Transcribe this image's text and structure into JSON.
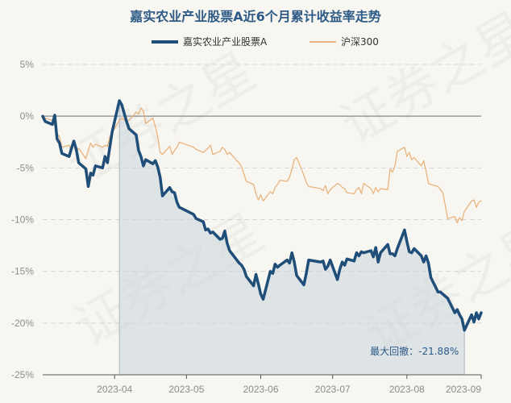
{
  "chart_data": {
    "type": "line",
    "title": "嘉实农业产业股票A近6个月累计收益率走势",
    "ylim": [
      -25,
      5
    ],
    "yticks": [
      "5%",
      "0%",
      "-5%",
      "-10%",
      "-15%",
      "-20%",
      "-25%"
    ],
    "ytick_values": [
      5,
      0,
      -5,
      -10,
      -15,
      -20,
      -25
    ],
    "xticks": [
      "2023-04",
      "2023-05",
      "2023-06",
      "2023-07",
      "2023-08",
      "2023-09"
    ],
    "xtick_values": [
      "2023-04-01",
      "2023-05-01",
      "2023-06-01",
      "2023-07-01",
      "2023-08-01",
      "2023-09-01"
    ],
    "x_range": [
      "2023-03-02",
      "2023-09-01"
    ],
    "legend_position": "top",
    "grid": "horizontal",
    "series": [
      {
        "name": "嘉实农业产业股票A",
        "color": "#1f4e79",
        "points": [
          [
            "2023-03-02",
            0.0
          ],
          [
            "2023-03-03",
            -0.5
          ],
          [
            "2023-03-06",
            -0.8
          ],
          [
            "2023-03-07",
            0.1
          ],
          [
            "2023-03-08",
            -2.2
          ],
          [
            "2023-03-09",
            -2.6
          ],
          [
            "2023-03-10",
            -3.6
          ],
          [
            "2023-03-13",
            -3.9
          ],
          [
            "2023-03-14",
            -3.1
          ],
          [
            "2023-03-15",
            -2.4
          ],
          [
            "2023-03-16",
            -3.2
          ],
          [
            "2023-03-17",
            -4.5
          ],
          [
            "2023-03-20",
            -5.1
          ],
          [
            "2023-03-21",
            -6.8
          ],
          [
            "2023-03-22",
            -5.5
          ],
          [
            "2023-03-23",
            -5.7
          ],
          [
            "2023-03-24",
            -4.8
          ],
          [
            "2023-03-27",
            -5.0
          ],
          [
            "2023-03-28",
            -3.9
          ],
          [
            "2023-03-29",
            -4.5
          ],
          [
            "2023-03-30",
            -3.0
          ],
          [
            "2023-03-31",
            -1.5
          ],
          [
            "2023-04-03",
            1.5
          ],
          [
            "2023-04-04",
            1.1
          ],
          [
            "2023-04-06",
            -0.5
          ],
          [
            "2023-04-07",
            -1.2
          ],
          [
            "2023-04-10",
            -1.8
          ],
          [
            "2023-04-11",
            -3.3
          ],
          [
            "2023-04-12",
            -3.9
          ],
          [
            "2023-04-13",
            -4.8
          ],
          [
            "2023-04-14",
            -4.2
          ],
          [
            "2023-04-17",
            -4.6
          ],
          [
            "2023-04-18",
            -4.3
          ],
          [
            "2023-04-19",
            -4.9
          ],
          [
            "2023-04-20",
            -5.9
          ],
          [
            "2023-04-21",
            -7.7
          ],
          [
            "2023-04-24",
            -6.9
          ],
          [
            "2023-04-25",
            -7.3
          ],
          [
            "2023-04-26",
            -7.4
          ],
          [
            "2023-04-27",
            -8.3
          ],
          [
            "2023-04-28",
            -8.8
          ],
          [
            "2023-05-04",
            -9.5
          ],
          [
            "2023-05-05",
            -9.9
          ],
          [
            "2023-05-08",
            -10.2
          ],
          [
            "2023-05-09",
            -11.0
          ],
          [
            "2023-05-10",
            -10.9
          ],
          [
            "2023-05-11",
            -11.3
          ],
          [
            "2023-05-12",
            -11.2
          ],
          [
            "2023-05-15",
            -11.9
          ],
          [
            "2023-05-16",
            -11.8
          ],
          [
            "2023-05-17",
            -11.1
          ],
          [
            "2023-05-18",
            -12.3
          ],
          [
            "2023-05-19",
            -13.0
          ],
          [
            "2023-05-22",
            -13.9
          ],
          [
            "2023-05-23",
            -14.2
          ],
          [
            "2023-05-24",
            -14.4
          ],
          [
            "2023-05-25",
            -14.8
          ],
          [
            "2023-05-26",
            -15.5
          ],
          [
            "2023-05-29",
            -16.4
          ],
          [
            "2023-05-30",
            -15.3
          ],
          [
            "2023-05-31",
            -16.2
          ],
          [
            "2023-06-01",
            -17.2
          ],
          [
            "2023-06-02",
            -17.7
          ],
          [
            "2023-06-05",
            -15.0
          ],
          [
            "2023-06-06",
            -15.2
          ],
          [
            "2023-06-07",
            -14.3
          ],
          [
            "2023-06-08",
            -14.6
          ],
          [
            "2023-06-09",
            -14.4
          ],
          [
            "2023-06-12",
            -13.9
          ],
          [
            "2023-06-13",
            -14.2
          ],
          [
            "2023-06-14",
            -13.2
          ],
          [
            "2023-06-15",
            -14.1
          ],
          [
            "2023-06-16",
            -15.4
          ],
          [
            "2023-06-19",
            -16.3
          ],
          [
            "2023-06-20",
            -15.2
          ],
          [
            "2023-06-21",
            -13.9
          ],
          [
            "2023-06-26",
            -14.1
          ],
          [
            "2023-06-27",
            -14.0
          ],
          [
            "2023-06-28",
            -14.8
          ],
          [
            "2023-06-29",
            -14.5
          ],
          [
            "2023-06-30",
            -13.9
          ],
          [
            "2023-07-03",
            -15.8
          ],
          [
            "2023-07-04",
            -14.8
          ],
          [
            "2023-07-05",
            -14.1
          ],
          [
            "2023-07-06",
            -14.4
          ],
          [
            "2023-07-07",
            -13.8
          ],
          [
            "2023-07-10",
            -14.0
          ],
          [
            "2023-07-11",
            -13.2
          ],
          [
            "2023-07-12",
            -13.5
          ],
          [
            "2023-07-13",
            -13.1
          ],
          [
            "2023-07-14",
            -13.2
          ],
          [
            "2023-07-17",
            -13.0
          ],
          [
            "2023-07-18",
            -13.6
          ],
          [
            "2023-07-19",
            -12.7
          ],
          [
            "2023-07-20",
            -14.1
          ],
          [
            "2023-07-21",
            -13.2
          ],
          [
            "2023-07-24",
            -12.4
          ],
          [
            "2023-07-25",
            -13.3
          ],
          [
            "2023-07-26",
            -13.3
          ],
          [
            "2023-07-27",
            -13.5
          ],
          [
            "2023-07-28",
            -12.8
          ],
          [
            "2023-07-31",
            -11.0
          ],
          [
            "2023-08-01",
            -12.1
          ],
          [
            "2023-08-02",
            -13.1
          ],
          [
            "2023-08-03",
            -13.2
          ],
          [
            "2023-08-04",
            -12.8
          ],
          [
            "2023-08-07",
            -13.5
          ],
          [
            "2023-08-08",
            -14.1
          ],
          [
            "2023-08-09",
            -13.5
          ],
          [
            "2023-08-10",
            -14.2
          ],
          [
            "2023-08-11",
            -15.6
          ],
          [
            "2023-08-14",
            -17.0
          ],
          [
            "2023-08-15",
            -17.0
          ],
          [
            "2023-08-16",
            -17.2
          ],
          [
            "2023-08-17",
            -17.4
          ],
          [
            "2023-08-18",
            -17.6
          ],
          [
            "2023-08-21",
            -19.0
          ],
          [
            "2023-08-22",
            -18.7
          ],
          [
            "2023-08-23",
            -19.2
          ],
          [
            "2023-08-24",
            -19.6
          ],
          [
            "2023-08-25",
            -20.7
          ],
          [
            "2023-08-28",
            -19.2
          ],
          [
            "2023-08-29",
            -19.9
          ],
          [
            "2023-08-30",
            -19.0
          ],
          [
            "2023-08-31",
            -19.6
          ],
          [
            "2023-09-01",
            -19.0
          ]
        ]
      },
      {
        "name": "沪深300",
        "color": "#e8b47e",
        "points": [
          [
            "2023-03-02",
            0.0
          ],
          [
            "2023-03-03",
            -0.2
          ],
          [
            "2023-03-06",
            -0.4
          ],
          [
            "2023-03-07",
            -0.9
          ],
          [
            "2023-03-08",
            -1.7
          ],
          [
            "2023-03-09",
            -2.0
          ],
          [
            "2023-03-10",
            -3.0
          ],
          [
            "2023-03-13",
            -2.8
          ],
          [
            "2023-03-14",
            -3.3
          ],
          [
            "2023-03-15",
            -2.5
          ],
          [
            "2023-03-16",
            -3.5
          ],
          [
            "2023-03-17",
            -3.1
          ],
          [
            "2023-03-20",
            -4.1
          ],
          [
            "2023-03-21",
            -3.3
          ],
          [
            "2023-03-22",
            -2.6
          ],
          [
            "2023-03-23",
            -3.0
          ],
          [
            "2023-03-24",
            -2.7
          ],
          [
            "2023-03-27",
            -3.0
          ],
          [
            "2023-03-28",
            -2.8
          ],
          [
            "2023-03-29",
            -2.9
          ],
          [
            "2023-03-30",
            -2.0
          ],
          [
            "2023-03-31",
            -1.6
          ],
          [
            "2023-04-03",
            -0.4
          ],
          [
            "2023-04-04",
            -0.2
          ],
          [
            "2023-04-06",
            -0.5
          ],
          [
            "2023-04-07",
            -0.4
          ],
          [
            "2023-04-10",
            0.4
          ],
          [
            "2023-04-11",
            0.2
          ],
          [
            "2023-04-12",
            0.8
          ],
          [
            "2023-04-13",
            0.5
          ],
          [
            "2023-04-14",
            -0.7
          ],
          [
            "2023-04-17",
            -0.2
          ],
          [
            "2023-04-18",
            -1.0
          ],
          [
            "2023-04-19",
            -2.0
          ],
          [
            "2023-04-20",
            -3.5
          ],
          [
            "2023-04-21",
            -3.7
          ],
          [
            "2023-04-24",
            -2.9
          ],
          [
            "2023-04-25",
            -3.7
          ],
          [
            "2023-04-26",
            -3.3
          ],
          [
            "2023-04-27",
            -3.0
          ],
          [
            "2023-04-28",
            -2.5
          ],
          [
            "2023-05-04",
            -3.0
          ],
          [
            "2023-05-05",
            -3.2
          ],
          [
            "2023-05-08",
            -3.5
          ],
          [
            "2023-05-09",
            -3.3
          ],
          [
            "2023-05-10",
            -3.1
          ],
          [
            "2023-05-11",
            -2.8
          ],
          [
            "2023-05-12",
            -3.7
          ],
          [
            "2023-05-15",
            -3.4
          ],
          [
            "2023-05-16",
            -3.0
          ],
          [
            "2023-05-17",
            -3.2
          ],
          [
            "2023-05-18",
            -3.7
          ],
          [
            "2023-05-19",
            -3.5
          ],
          [
            "2023-05-22",
            -4.3
          ],
          [
            "2023-05-23",
            -4.5
          ],
          [
            "2023-05-24",
            -4.9
          ],
          [
            "2023-05-25",
            -5.6
          ],
          [
            "2023-05-26",
            -6.3
          ],
          [
            "2023-05-29",
            -6.6
          ],
          [
            "2023-05-30",
            -7.5
          ],
          [
            "2023-05-31",
            -8.1
          ],
          [
            "2023-06-01",
            -7.6
          ],
          [
            "2023-06-02",
            -8.2
          ],
          [
            "2023-06-05",
            -7.3
          ],
          [
            "2023-06-06",
            -7.5
          ],
          [
            "2023-06-07",
            -6.9
          ],
          [
            "2023-06-08",
            -6.6
          ],
          [
            "2023-06-09",
            -6.2
          ],
          [
            "2023-06-12",
            -6.3
          ],
          [
            "2023-06-13",
            -5.9
          ],
          [
            "2023-06-14",
            -5.1
          ],
          [
            "2023-06-15",
            -4.2
          ],
          [
            "2023-06-16",
            -4.0
          ],
          [
            "2023-06-19",
            -5.7
          ],
          [
            "2023-06-20",
            -6.4
          ],
          [
            "2023-06-21",
            -6.8
          ],
          [
            "2023-06-26",
            -7.0
          ],
          [
            "2023-06-27",
            -7.2
          ],
          [
            "2023-06-28",
            -6.7
          ],
          [
            "2023-06-29",
            -7.5
          ],
          [
            "2023-06-30",
            -7.1
          ],
          [
            "2023-07-03",
            -6.5
          ],
          [
            "2023-07-04",
            -6.6
          ],
          [
            "2023-07-05",
            -6.9
          ],
          [
            "2023-07-06",
            -7.0
          ],
          [
            "2023-07-07",
            -7.4
          ],
          [
            "2023-07-10",
            -7.5
          ],
          [
            "2023-07-11",
            -7.1
          ],
          [
            "2023-07-12",
            -6.9
          ],
          [
            "2023-07-13",
            -7.5
          ],
          [
            "2023-07-14",
            -6.5
          ],
          [
            "2023-07-17",
            -7.0
          ],
          [
            "2023-07-18",
            -7.5
          ],
          [
            "2023-07-19",
            -6.9
          ],
          [
            "2023-07-20",
            -7.3
          ],
          [
            "2023-07-21",
            -7.0
          ],
          [
            "2023-07-24",
            -7.1
          ],
          [
            "2023-07-25",
            -5.1
          ],
          [
            "2023-07-26",
            -5.4
          ],
          [
            "2023-07-27",
            -4.8
          ],
          [
            "2023-07-28",
            -3.4
          ],
          [
            "2023-07-31",
            -3.0
          ],
          [
            "2023-08-01",
            -3.9
          ],
          [
            "2023-08-02",
            -3.5
          ],
          [
            "2023-08-03",
            -4.2
          ],
          [
            "2023-08-04",
            -4.0
          ],
          [
            "2023-08-07",
            -4.8
          ],
          [
            "2023-08-08",
            -4.3
          ],
          [
            "2023-08-09",
            -5.3
          ],
          [
            "2023-08-10",
            -6.5
          ],
          [
            "2023-08-11",
            -6.6
          ],
          [
            "2023-08-14",
            -6.8
          ],
          [
            "2023-08-15",
            -7.1
          ],
          [
            "2023-08-16",
            -7.4
          ],
          [
            "2023-08-17",
            -8.6
          ],
          [
            "2023-08-18",
            -9.9
          ],
          [
            "2023-08-21",
            -9.7
          ],
          [
            "2023-08-22",
            -10.3
          ],
          [
            "2023-08-23",
            -9.8
          ],
          [
            "2023-08-24",
            -10.1
          ],
          [
            "2023-08-25",
            -9.2
          ],
          [
            "2023-08-28",
            -8.2
          ],
          [
            "2023-08-29",
            -8.1
          ],
          [
            "2023-08-30",
            -8.8
          ],
          [
            "2023-08-31",
            -8.3
          ],
          [
            "2023-09-01",
            -8.2
          ]
        ]
      }
    ],
    "drawdown": {
      "label": "最大回撤：-21.88%",
      "start": "2023-04-03",
      "end": "2023-08-25",
      "fill_color": "#c9d3dc"
    }
  },
  "watermark": "证券之星"
}
